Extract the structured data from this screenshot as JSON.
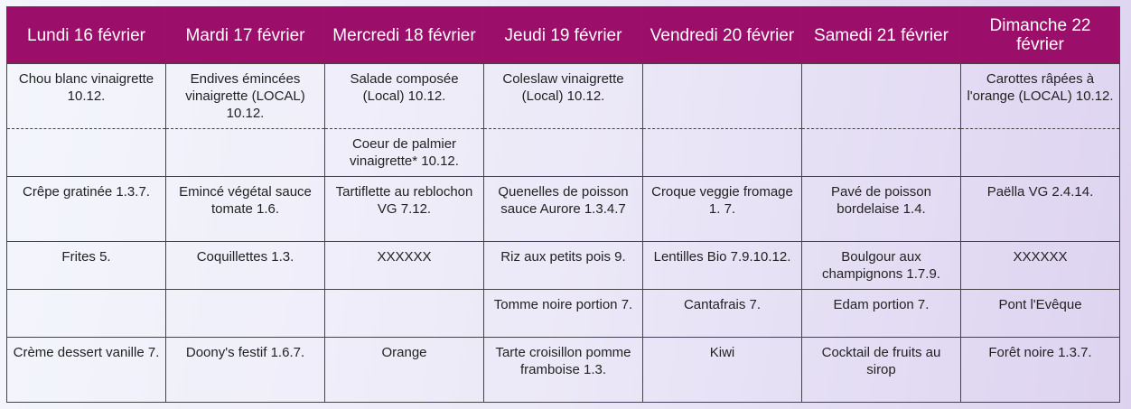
{
  "days": [
    "Lundi 16 février",
    "Mardi 17 février",
    "Mercredi 18 février",
    "Jeudi 19 février",
    "Vendredi 20 février",
    "Samedi 21 février",
    "Dimanche 22 février"
  ],
  "rows": [
    [
      "Chou blanc vinaigrette 10.12.",
      "Endives émincées vinaigrette (LOCAL) 10.12.",
      "Salade composée (Local) 10.12.",
      "Coleslaw vinaigrette (Local) 10.12.",
      "",
      "",
      "Carottes râpées à l'orange (LOCAL) 10.12."
    ],
    [
      "",
      "",
      "Coeur de palmier vinaigrette* 10.12.",
      "",
      "",
      "",
      ""
    ],
    [
      "Crêpe gratinée 1.3.7.",
      "Emincé végétal sauce tomate 1.6.",
      "Tartiflette au reblochon VG 7.12.",
      "Quenelles de poisson sauce Aurore 1.3.4.7",
      "Croque veggie fromage 1. 7.",
      "Pavé de poisson bordelaise 1.4.",
      "Paëlla VG 2.4.14."
    ],
    [
      "Frites 5.",
      "Coquillettes 1.3.",
      "XXXXXX",
      "Riz aux petits pois 9.",
      "Lentilles Bio 7.9.10.12.",
      "Boulgour aux champignons 1.7.9.",
      "XXXXXX"
    ],
    [
      "",
      "",
      "",
      "Tomme noire portion 7.",
      "Cantafrais 7.",
      "Edam portion 7.",
      "Pont l'Evêque"
    ],
    [
      "Crème dessert vanille 7.",
      "Doony's festif 1.6.7.",
      "Orange",
      "Tarte croisillon pomme framboise 1.3.",
      "Kiwi",
      "Cocktail de fruits au sirop",
      "Forêt noire 1.3.7."
    ]
  ],
  "colors": {
    "header": "#9b0f6b",
    "header_text": "#ffffff"
  }
}
